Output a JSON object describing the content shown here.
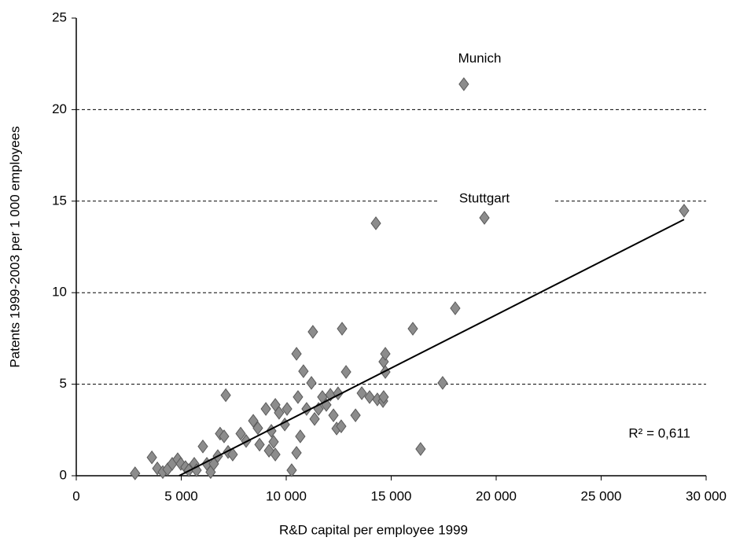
{
  "chart_data": {
    "type": "scatter",
    "xlabel": "R&D capital per employee 1999",
    "ylabel": "Patents 1999-2003 per 1 000  employees",
    "xlim": [
      0,
      30000
    ],
    "ylim": [
      0,
      25
    ],
    "xticks": [
      0,
      {
        "value": 5000,
        "label": "5 000"
      },
      {
        "value": 10000,
        "label": "10 000"
      },
      {
        "value": 15000,
        "label": "15 000"
      },
      {
        "value": 20000,
        "label": "20 000"
      },
      {
        "value": 25000,
        "label": "25 000"
      },
      {
        "value": 30000,
        "label": "30 000"
      }
    ],
    "yticks": [
      0,
      5,
      10,
      15,
      20,
      25
    ],
    "grid": true,
    "x": [
      2800,
      3600,
      3860,
      4120,
      4350,
      4570,
      4830,
      4980,
      5200,
      5360,
      5620,
      5730,
      6030,
      6220,
      6400,
      6550,
      6740,
      6850,
      7040,
      7230,
      7450,
      7120,
      7830,
      8090,
      8430,
      8650,
      8730,
      9030,
      9290,
      9400,
      9480,
      9180,
      9480,
      9660,
      9930,
      10040,
      10260,
      10490,
      10560,
      10490,
      10670,
      10820,
      10970,
      11270,
      11200,
      11350,
      11540,
      11720,
      11910,
      12100,
      12250,
      12400,
      12470,
      12620,
      12660,
      12850,
      13300,
      13600,
      13970,
      14270,
      14340,
      14610,
      14640,
      14720,
      14720,
      14640,
      16030,
      16400,
      17450,
      18050,
      18460,
      19440,
      28950
    ],
    "series": [
      {
        "color": "#8c8c8c",
        "values": [
          0.13,
          1.0,
          0.4,
          0.2,
          0.35,
          0.65,
          0.9,
          0.65,
          0.47,
          0.3,
          0.65,
          0.3,
          1.6,
          0.65,
          0.2,
          0.65,
          1.07,
          2.3,
          2.15,
          1.3,
          1.16,
          4.4,
          2.3,
          1.9,
          3.0,
          2.6,
          1.7,
          3.65,
          2.45,
          1.85,
          1.16,
          1.37,
          3.87,
          3.44,
          2.8,
          3.65,
          0.3,
          6.66,
          4.3,
          1.25,
          2.15,
          5.71,
          3.65,
          7.86,
          5.07,
          3.1,
          3.65,
          4.3,
          3.87,
          4.42,
          3.3,
          2.58,
          4.5,
          2.7,
          8.03,
          5.67,
          3.3,
          4.51,
          4.3,
          13.79,
          4.17,
          4.08,
          6.23,
          5.67,
          6.66,
          4.3,
          8.03,
          1.46,
          5.07,
          9.15,
          21.39,
          14.09,
          14.48
        ]
      }
    ],
    "trendline": {
      "x": [
        4900,
        28950
      ],
      "y": [
        0,
        14
      ],
      "color": "#000000"
    },
    "annotations": [
      "Munich",
      "Stuttgart",
      "R² = 0,611"
    ]
  }
}
